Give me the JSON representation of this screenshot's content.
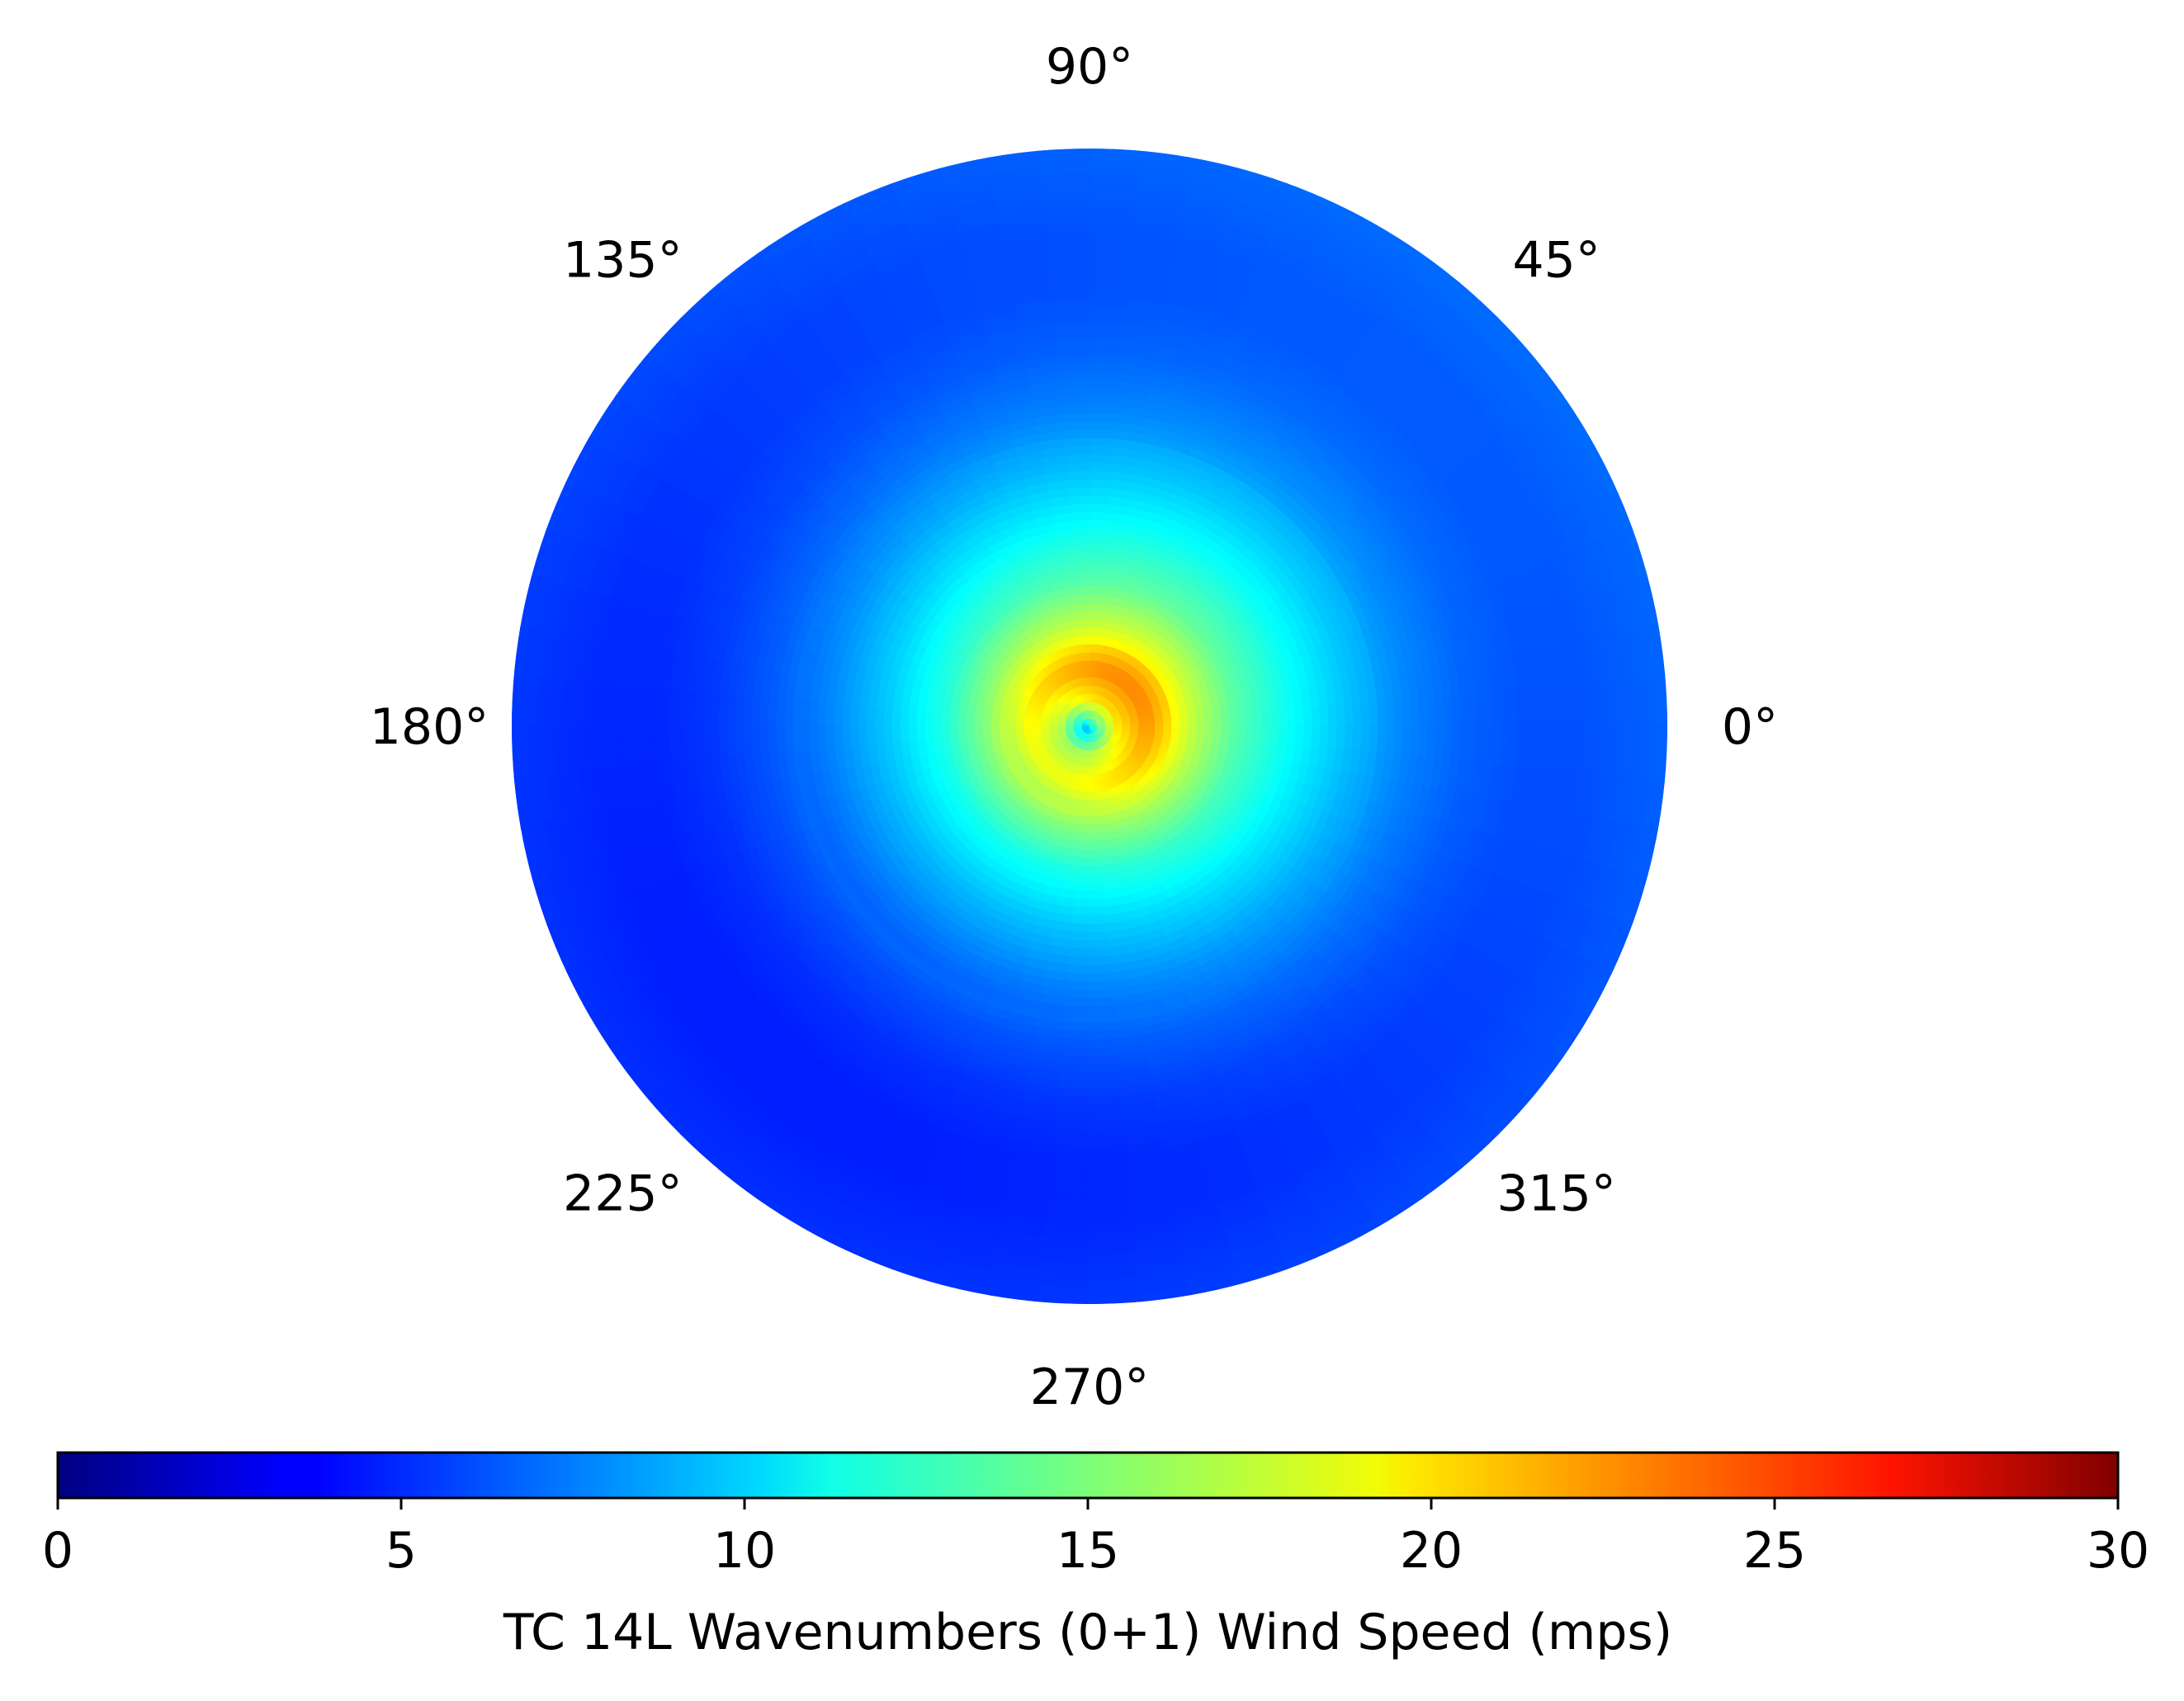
{
  "chart_data": {
    "type": "heatmap",
    "subtype": "polar",
    "colormap": "jet",
    "angular_ticks": [
      "0°",
      "45°",
      "90°",
      "135°",
      "180°",
      "225°",
      "270°",
      "315°"
    ],
    "angular_tick_values_deg": [
      0,
      45,
      90,
      135,
      180,
      225,
      270,
      315
    ],
    "angle_direction": "counterclockwise",
    "zero_location": "east",
    "grid": false,
    "colorbar": {
      "label": "TC 14L Wavenumbers (0+1) Wind Speed (mps)",
      "range": [
        0,
        30
      ],
      "ticks": [
        0,
        5,
        10,
        15,
        20,
        25,
        30
      ],
      "orientation": "horizontal",
      "placement": "bottom"
    },
    "field_estimate": {
      "radius_normalized": [
        0.0,
        0.05,
        0.1,
        0.18,
        0.25,
        0.35,
        0.45,
        0.55,
        0.65,
        0.75,
        0.85,
        1.0
      ],
      "wind_speed_mps": [
        10.5,
        18.0,
        20.5,
        16.0,
        13.0,
        10.5,
        8.5,
        7.0,
        6.0,
        5.5,
        5.5,
        6.0
      ],
      "max_wind_mps": 22,
      "max_wind_direction_deg": 45,
      "weakest_sector_deg": 270
    }
  }
}
